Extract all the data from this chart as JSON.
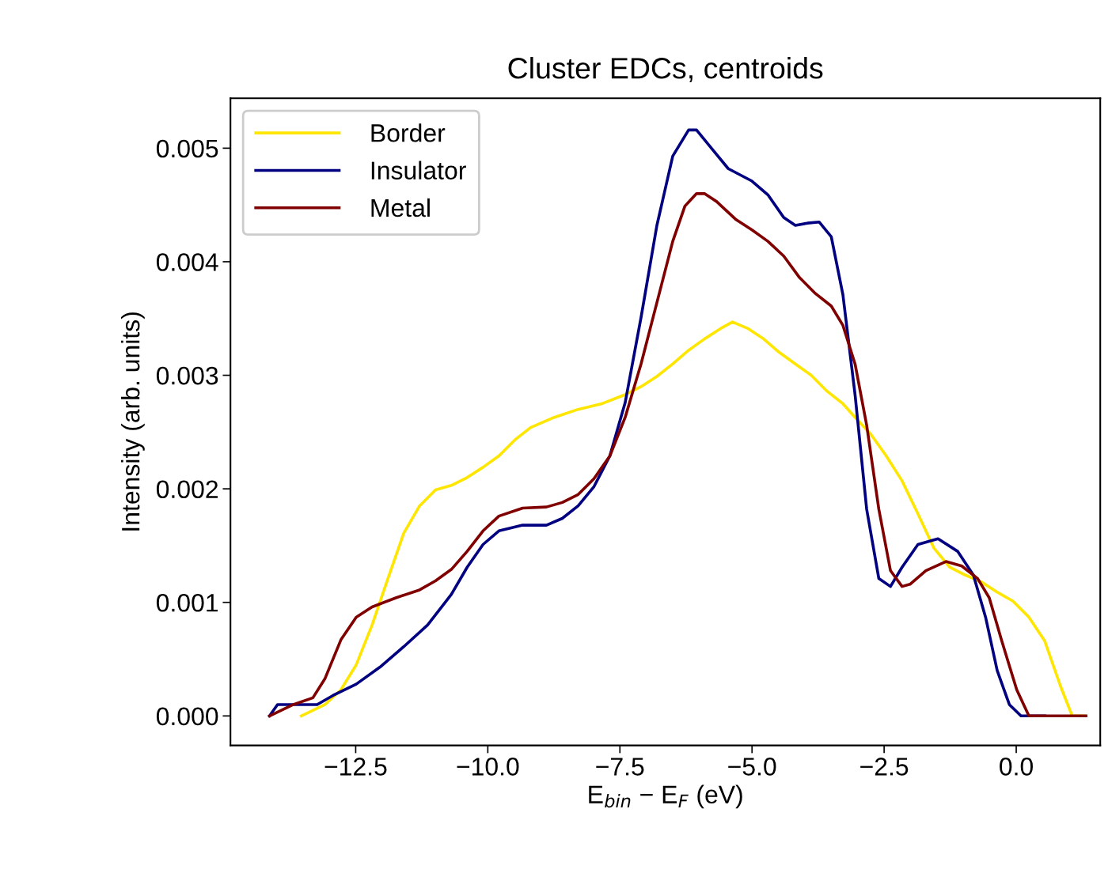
{
  "chart_data": {
    "type": "line",
    "title": "Cluster EDCs, centroids",
    "xlabel": "E$_{bin}$ − E$_{F}$ (eV)",
    "ylabel": "Intensity (arb. units)",
    "xlim": [
      -14.87,
      1.59
    ],
    "ylim": [
      -0.00026,
      0.00544
    ],
    "xticks": [
      {
        "value": -12.5,
        "label": "−12.5"
      },
      {
        "value": -10.0,
        "label": "−10.0"
      },
      {
        "value": -7.5,
        "label": "−7.5"
      },
      {
        "value": -5.0,
        "label": "−5.0"
      },
      {
        "value": -2.5,
        "label": "−2.5"
      },
      {
        "value": 0.0,
        "label": "0.0"
      }
    ],
    "yticks": [
      {
        "value": 0.0,
        "label": "0.000"
      },
      {
        "value": 0.001,
        "label": "0.001"
      },
      {
        "value": 0.002,
        "label": "0.002"
      },
      {
        "value": 0.003,
        "label": "0.003"
      },
      {
        "value": 0.004,
        "label": "0.004"
      },
      {
        "value": 0.005,
        "label": "0.005"
      }
    ],
    "grid": false,
    "legend": "top left",
    "marker": "none",
    "line_style": "solid",
    "series": [
      {
        "name": "Border",
        "color": "#ffe600",
        "x": [
          -13.53,
          -13.08,
          -12.78,
          -12.49,
          -12.19,
          -11.89,
          -11.59,
          -11.29,
          -10.99,
          -10.69,
          -10.39,
          -10.09,
          -9.79,
          -9.49,
          -9.19,
          -8.74,
          -8.29,
          -7.84,
          -7.4,
          -7.1,
          -6.8,
          -6.5,
          -6.2,
          -5.9,
          -5.6,
          -5.37,
          -5.07,
          -4.78,
          -4.48,
          -4.18,
          -3.88,
          -3.58,
          -3.28,
          -3.05,
          -2.75,
          -2.46,
          -2.16,
          -1.86,
          -1.56,
          -1.26,
          -0.96,
          -0.66,
          -0.36,
          -0.06,
          0.24,
          0.54,
          0.84,
          1.06,
          1.29
        ],
        "values": [
          0.0,
          0.0001,
          0.00023,
          0.00045,
          0.0008,
          0.00121,
          0.00161,
          0.00185,
          0.00199,
          0.00203,
          0.0021,
          0.00219,
          0.00229,
          0.00243,
          0.00254,
          0.00263,
          0.0027,
          0.00275,
          0.00283,
          0.0029,
          0.00299,
          0.0031,
          0.00322,
          0.00332,
          0.00341,
          0.00347,
          0.00341,
          0.00332,
          0.0032,
          0.0031,
          0.003,
          0.00286,
          0.00275,
          0.00263,
          0.00248,
          0.00229,
          0.00207,
          0.00178,
          0.00148,
          0.00131,
          0.00124,
          0.00118,
          0.00109,
          0.00101,
          0.00087,
          0.00066,
          0.00026,
          0.0,
          0.0
        ]
      },
      {
        "name": "Insulator",
        "color": "#000080",
        "x": [
          -14.13,
          -13.98,
          -13.53,
          -13.23,
          -12.93,
          -12.49,
          -12.04,
          -11.59,
          -11.14,
          -10.69,
          -10.39,
          -10.09,
          -9.79,
          -9.34,
          -8.89,
          -8.59,
          -8.29,
          -7.99,
          -7.69,
          -7.4,
          -7.1,
          -6.8,
          -6.5,
          -6.2,
          -6.05,
          -5.75,
          -5.45,
          -5.0,
          -4.7,
          -4.4,
          -4.18,
          -3.95,
          -3.73,
          -3.5,
          -3.28,
          -3.05,
          -2.83,
          -2.6,
          -2.38,
          -2.16,
          -1.86,
          -1.48,
          -1.11,
          -0.81,
          -0.58,
          -0.36,
          -0.13,
          0.09,
          0.54
        ],
        "values": [
          0.0,
          0.0001,
          0.0001,
          0.0001,
          0.00018,
          0.00028,
          0.00043,
          0.00061,
          0.0008,
          0.00107,
          0.00131,
          0.00151,
          0.00163,
          0.00168,
          0.00168,
          0.00174,
          0.00185,
          0.00202,
          0.00229,
          0.00276,
          0.00351,
          0.00432,
          0.00493,
          0.00516,
          0.00516,
          0.00499,
          0.00482,
          0.00471,
          0.00459,
          0.00439,
          0.00432,
          0.00434,
          0.00435,
          0.00422,
          0.00371,
          0.00283,
          0.00182,
          0.00121,
          0.00114,
          0.00131,
          0.00151,
          0.00156,
          0.00145,
          0.00124,
          0.00087,
          0.0004,
          0.0001,
          0.0,
          0.0
        ]
      },
      {
        "name": "Metal",
        "color": "#800000",
        "x": [
          -14.13,
          -13.68,
          -13.31,
          -13.08,
          -12.78,
          -12.49,
          -12.19,
          -11.74,
          -11.29,
          -10.99,
          -10.69,
          -10.39,
          -10.09,
          -9.79,
          -9.34,
          -8.89,
          -8.59,
          -8.29,
          -7.99,
          -7.69,
          -7.4,
          -7.1,
          -6.8,
          -6.5,
          -6.27,
          -6.05,
          -5.9,
          -5.67,
          -5.3,
          -5.0,
          -4.7,
          -4.4,
          -4.1,
          -3.8,
          -3.5,
          -3.28,
          -3.05,
          -2.83,
          -2.6,
          -2.38,
          -2.16,
          -2.01,
          -1.71,
          -1.33,
          -1.03,
          -0.73,
          -0.51,
          -0.28,
          0.01,
          0.24,
          0.69,
          1.32
        ],
        "values": [
          0.0,
          0.0001,
          0.00016,
          0.00033,
          0.00067,
          0.00087,
          0.00096,
          0.00104,
          0.00111,
          0.00119,
          0.00129,
          0.00145,
          0.00163,
          0.00176,
          0.00183,
          0.00184,
          0.00188,
          0.00195,
          0.00209,
          0.00229,
          0.00263,
          0.0031,
          0.00364,
          0.00418,
          0.00449,
          0.0046,
          0.0046,
          0.00453,
          0.00437,
          0.00428,
          0.00418,
          0.00405,
          0.00386,
          0.00372,
          0.00361,
          0.00344,
          0.0031,
          0.00256,
          0.00182,
          0.00128,
          0.00114,
          0.00116,
          0.00128,
          0.00136,
          0.00132,
          0.00121,
          0.00104,
          0.00067,
          0.00023,
          0.0,
          0.0,
          0.0
        ]
      }
    ]
  }
}
